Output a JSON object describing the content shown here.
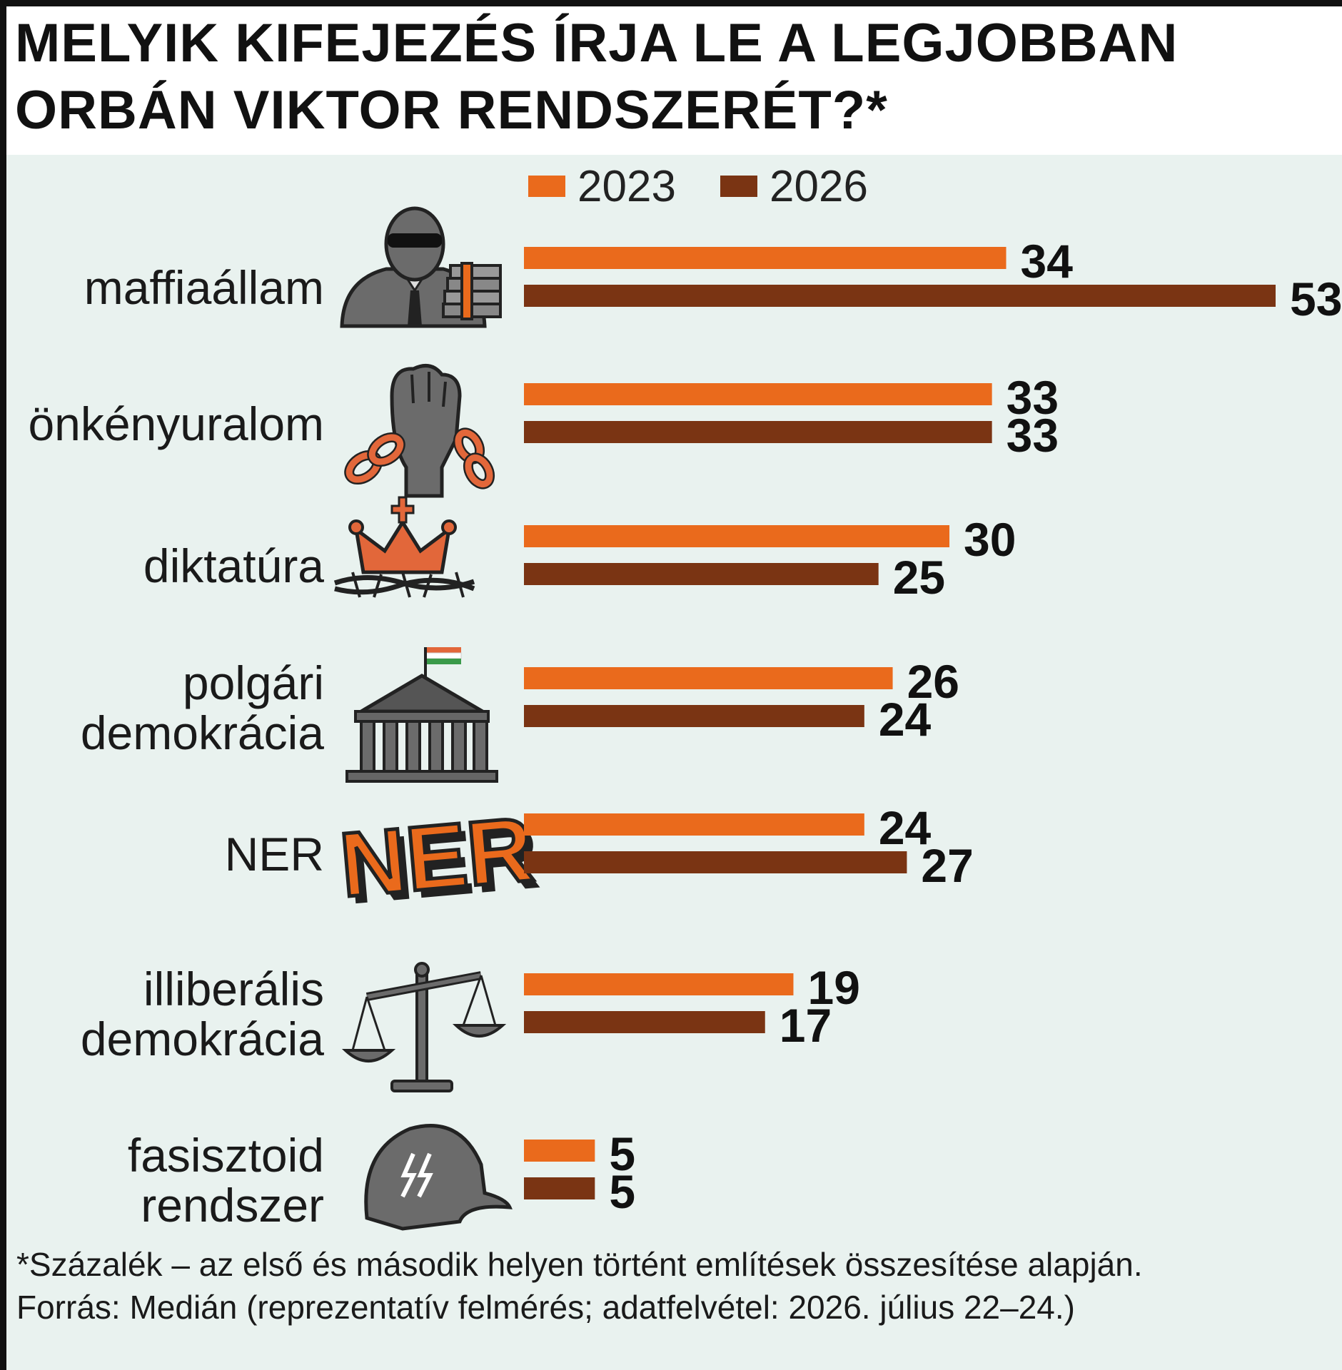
{
  "title_lines": [
    "MELYIK KIFEJEZÉS ÍRJA LE A LEGJOBBAN",
    "ORBÁN VIKTOR RENDSZERÉT?*"
  ],
  "footnote_lines": [
    "*Százalék – az első és második helyen történt említések összesítése alapján.",
    " Forrás: Medián (reprezentatív felmérés; adatfelvétel: 2026. július 22–24.)"
  ],
  "colors": {
    "2023": "#ea6a1c",
    "2026": "#7a3413",
    "background": "#e9f2ef",
    "icon_gray": "#6b6b6b"
  },
  "icons": [
    "mafia-boss-money-icon",
    "fist-broken-chain-icon",
    "crown-barbed-wire-icon",
    "parliament-flag-icon",
    "ner-logo-icon",
    "scales-icon",
    "ss-helmet-icon"
  ],
  "ner_logo_text": "NER",
  "chart_data": {
    "type": "bar",
    "orientation": "horizontal",
    "title": "MELYIK KIFEJEZÉS ÍRJA LE A LEGJOBBAN ORBÁN VIKTOR RENDSZERÉT?*",
    "legend_position": "top",
    "categories": [
      [
        "maffiaállam"
      ],
      [
        "önkényuralom"
      ],
      [
        "diktatúra"
      ],
      [
        "polgári",
        "demokrácia"
      ],
      [
        "NER"
      ],
      [
        "illiberális",
        "demokrácia"
      ],
      [
        "fasisztoid",
        "rendszer"
      ]
    ],
    "series": [
      {
        "name": "2023",
        "values": [
          34,
          33,
          30,
          26,
          24,
          19,
          5
        ]
      },
      {
        "name": "2026",
        "values": [
          53,
          33,
          25,
          24,
          27,
          17,
          5
        ]
      }
    ],
    "xlim": [
      0,
      53
    ],
    "grid": false
  }
}
